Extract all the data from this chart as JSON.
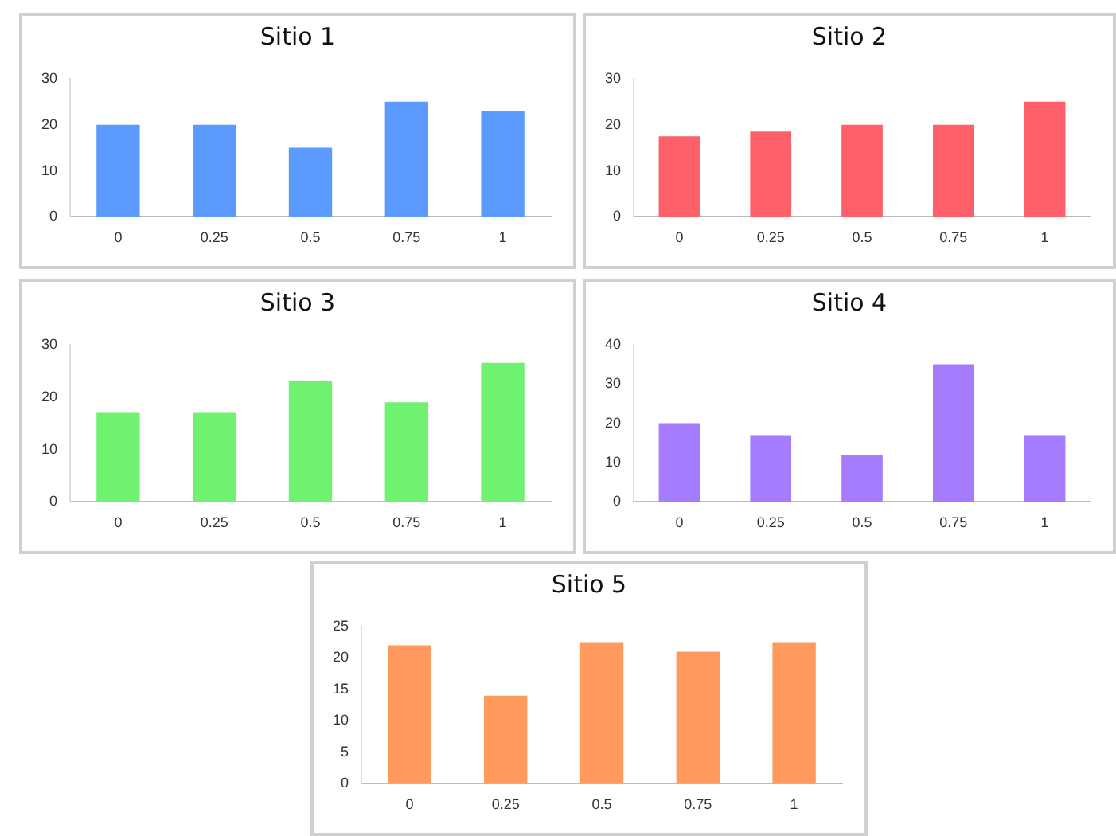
{
  "chart_data": [
    {
      "type": "bar",
      "title": "Sitio 1",
      "categories": [
        "0",
        "0.25",
        "0.5",
        "0.75",
        "1"
      ],
      "values": [
        20,
        20,
        15,
        25,
        23
      ],
      "color": "#5b9bff",
      "ylim": [
        0,
        30
      ],
      "yticks": [
        0,
        10,
        20,
        30
      ],
      "grid": false
    },
    {
      "type": "bar",
      "title": "Sitio 2",
      "categories": [
        "0",
        "0.25",
        "0.5",
        "0.75",
        "1"
      ],
      "values": [
        17.5,
        18.5,
        20,
        20,
        25
      ],
      "color": "#ff5f69",
      "ylim": [
        0,
        30
      ],
      "yticks": [
        0,
        10,
        20,
        30
      ],
      "grid": false
    },
    {
      "type": "bar",
      "title": "Sitio 3",
      "categories": [
        "0",
        "0.25",
        "0.5",
        "0.75",
        "1"
      ],
      "values": [
        17,
        17,
        23,
        19,
        26.5
      ],
      "color": "#6ff26f",
      "ylim": [
        0,
        30
      ],
      "yticks": [
        0,
        10,
        20,
        30
      ],
      "grid": false
    },
    {
      "type": "bar",
      "title": "Sitio 4",
      "categories": [
        "0",
        "0.25",
        "0.5",
        "0.75",
        "1"
      ],
      "values": [
        20,
        17,
        12,
        35,
        17
      ],
      "color": "#a57cff",
      "ylim": [
        0,
        40
      ],
      "yticks": [
        0,
        10,
        20,
        30,
        40
      ],
      "grid": false
    },
    {
      "type": "bar",
      "title": "Sitio 5",
      "categories": [
        "0",
        "0.25",
        "0.5",
        "0.75",
        "1"
      ],
      "values": [
        22,
        14,
        22.5,
        21,
        22.5
      ],
      "color": "#ff9a5c",
      "ylim": [
        0,
        25
      ],
      "yticks": [
        0,
        5,
        10,
        15,
        20,
        25
      ],
      "grid": false
    }
  ]
}
